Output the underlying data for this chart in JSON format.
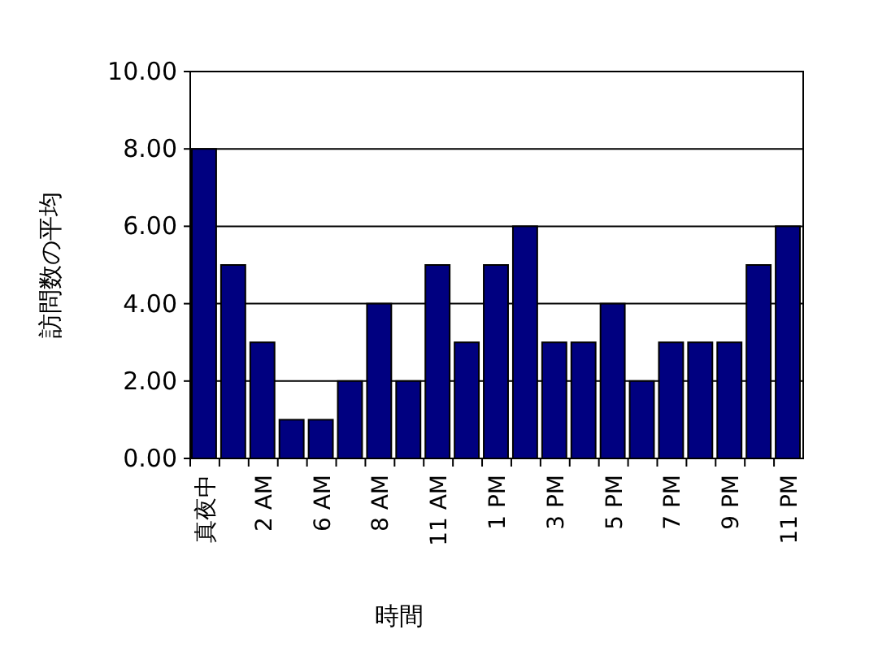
{
  "chart_data": {
    "type": "bar",
    "xlabel": "時間",
    "ylabel": "訪問数の平均",
    "categories": [
      "真夜中",
      null,
      "2 AM",
      null,
      "6 AM",
      null,
      "8 AM",
      null,
      "11 AM",
      null,
      "1 PM",
      null,
      "3 PM",
      null,
      "5 PM",
      null,
      "7 PM",
      null,
      "9 PM",
      null,
      "11 PM"
    ],
    "values": [
      8,
      5,
      3,
      1,
      1,
      2,
      4,
      2,
      5,
      3,
      5,
      6,
      3,
      3,
      4,
      2,
      3,
      3,
      3,
      5,
      6
    ],
    "color": "#000080",
    "ylim": [
      0,
      10
    ],
    "yticks": [
      {
        "value": 0,
        "label": "0.00"
      },
      {
        "value": 2,
        "label": "2.00"
      },
      {
        "value": 4,
        "label": "4.00"
      },
      {
        "value": 6,
        "label": "6.00"
      },
      {
        "value": 8,
        "label": "8.00"
      },
      {
        "value": 10,
        "label": "10.00"
      }
    ],
    "grid": "y"
  }
}
